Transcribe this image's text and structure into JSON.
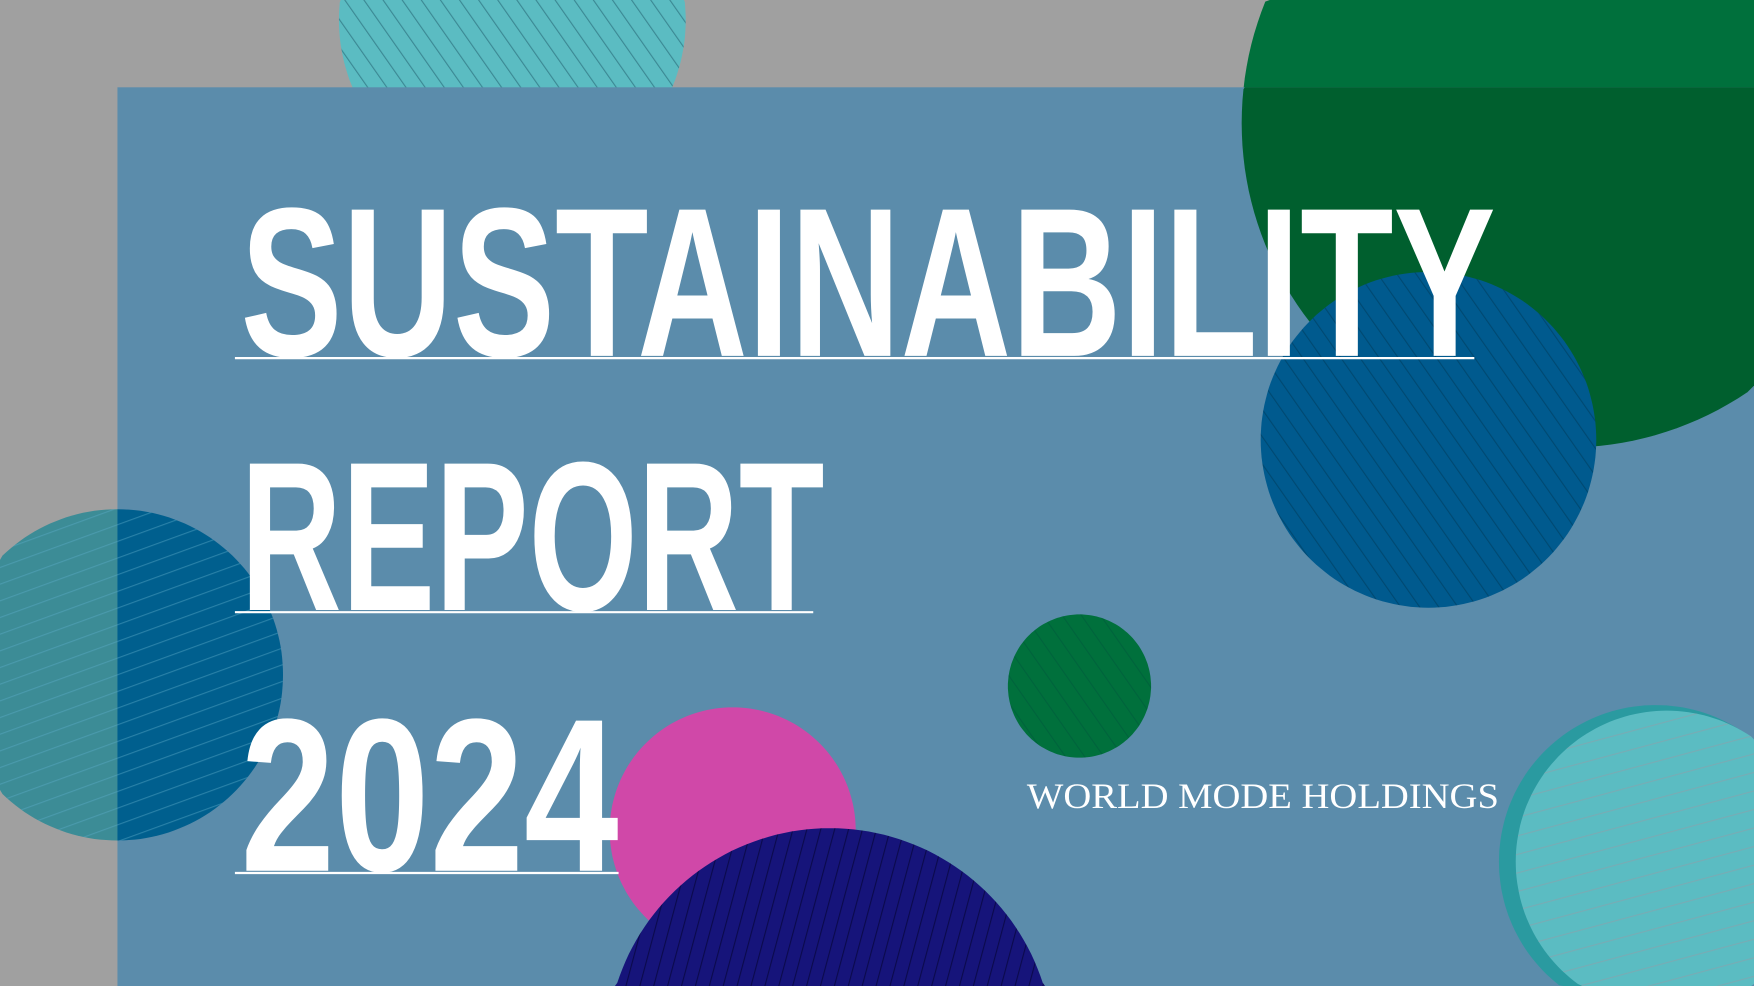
{
  "cover": {
    "title_line1": "SUSTAINABILITY",
    "title_line2": "REPORT",
    "title_line3": "2024",
    "company": "WORLD MODE HOLDINGS"
  },
  "colors": {
    "background": "#a0a0a0",
    "panel": "#5b8cab",
    "green": "#00703c",
    "green_dark": "#005f2e",
    "blue": "#005a8e",
    "teal": "#5bbcc2",
    "pink": "#d048a8",
    "navy": "#16147a",
    "text": "#ffffff"
  }
}
